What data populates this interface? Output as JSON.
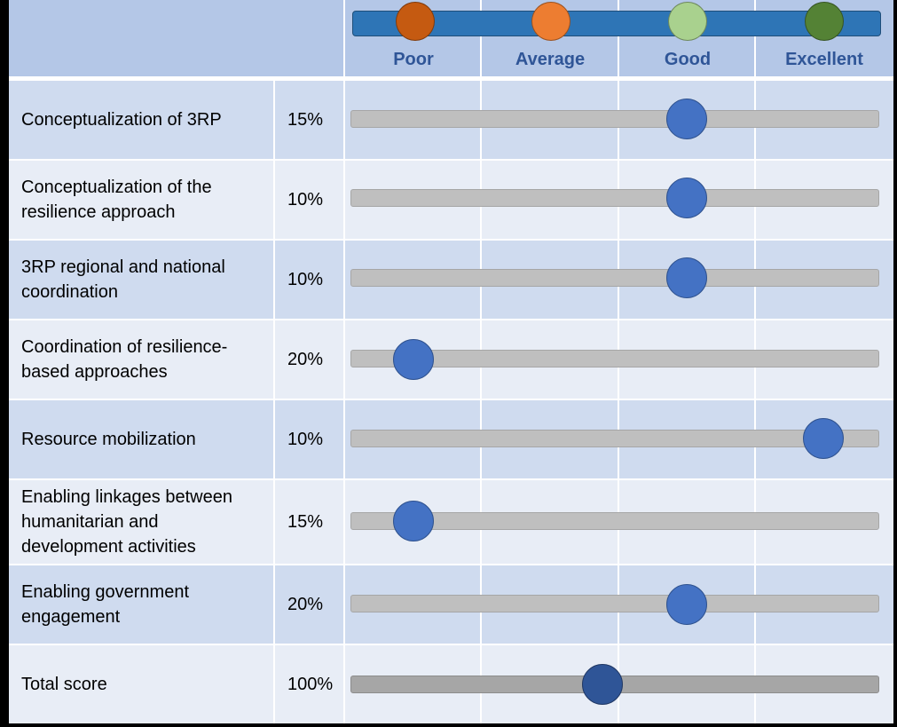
{
  "scale": {
    "labels": [
      "Poor",
      "Average",
      "Good",
      "Excellent"
    ],
    "colors": [
      "#c55a11",
      "#ed7d31",
      "#a9d18e",
      "#548235"
    ],
    "bar_color": "#2e75b6",
    "knob_color": "#4472c4",
    "total_knob_color": "#2f5597"
  },
  "rows": [
    {
      "label": "Conceptualization of 3RP",
      "weight": "15%",
      "rating": "Good"
    },
    {
      "label": "Conceptualization of the\nresilience approach",
      "weight": "10%",
      "rating": "Good"
    },
    {
      "label": "3RP regional and national\ncoordination",
      "weight": "10%",
      "rating": "Good"
    },
    {
      "label": "Coordination of resilience-\nbased approaches",
      "weight": "20%",
      "rating": "Poor"
    },
    {
      "label": "Resource mobilization",
      "weight": "10%",
      "rating": "Excellent"
    },
    {
      "label": "Enabling linkages between\nhumanitarian  and\ndevelopment  activities",
      "weight": "15%",
      "rating": "Poor"
    },
    {
      "label": "Enabling government\nengagement",
      "weight": "20%",
      "rating": "Good"
    }
  ],
  "total": {
    "label": "Total score",
    "weight": "100%",
    "level": 0.46
  }
}
